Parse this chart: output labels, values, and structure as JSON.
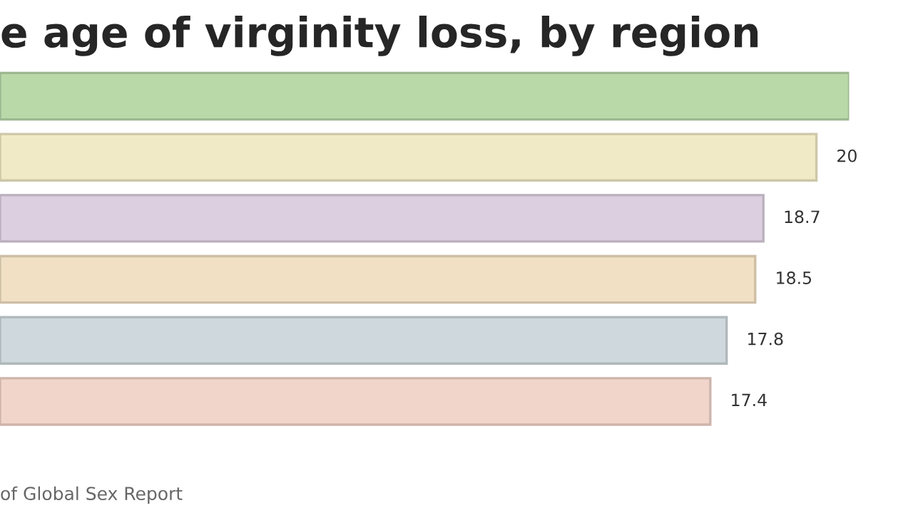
{
  "chart_data": {
    "type": "bar",
    "orientation": "horizontal",
    "title": "e age of virginity loss, by region",
    "categories": [
      null,
      null,
      null,
      null,
      null,
      null
    ],
    "values": [
      20.8,
      20,
      18.7,
      18.5,
      17.8,
      17.4
    ],
    "value_labels": [
      null,
      "20",
      "18.7",
      "18.5",
      "17.8",
      "17.4"
    ],
    "colors": [
      "#b9d9a9",
      "#f1eac6",
      "#dccfdf",
      "#f1e0c3",
      "#cfd8dc",
      "#f2d5ca"
    ],
    "xlim": [
      0,
      20.8
    ],
    "tick_labels": false,
    "annotations": [
      "of Global Sex Report"
    ]
  }
}
